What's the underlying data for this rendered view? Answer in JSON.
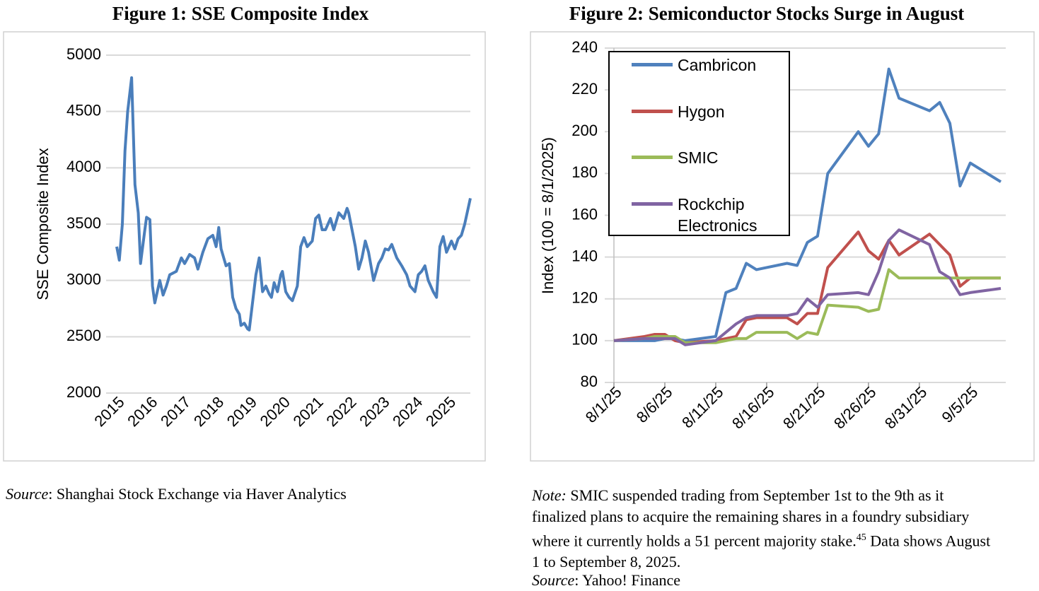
{
  "chart_data": [
    {
      "type": "line",
      "title": "Figure 1: SSE Composite Index",
      "y_label": "SSE Composite Index",
      "x": [
        2015.0,
        2015.08,
        2015.17,
        2015.25,
        2015.33,
        2015.45,
        2015.55,
        2015.65,
        2015.72,
        2015.85,
        2015.9,
        2016.0,
        2016.08,
        2016.15,
        2016.3,
        2016.4,
        2016.5,
        2016.6,
        2016.8,
        2016.95,
        2017.05,
        2017.2,
        2017.35,
        2017.45,
        2017.6,
        2017.75,
        2017.9,
        2018.0,
        2018.08,
        2018.15,
        2018.3,
        2018.4,
        2018.5,
        2018.6,
        2018.7,
        2018.75,
        2018.85,
        2018.95,
        2019.0,
        2019.2,
        2019.3,
        2019.4,
        2019.5,
        2019.6,
        2019.67,
        2019.75,
        2019.85,
        2019.95,
        2020.0,
        2020.1,
        2020.2,
        2020.3,
        2020.45,
        2020.55,
        2020.65,
        2020.75,
        2020.9,
        2021.0,
        2021.1,
        2021.2,
        2021.3,
        2021.45,
        2021.55,
        2021.7,
        2021.85,
        2021.95,
        2022.0,
        2022.1,
        2022.2,
        2022.3,
        2022.4,
        2022.5,
        2022.6,
        2022.75,
        2022.9,
        2023.0,
        2023.1,
        2023.2,
        2023.3,
        2023.45,
        2023.6,
        2023.75,
        2023.85,
        2024.0,
        2024.1,
        2024.2,
        2024.3,
        2024.4,
        2024.55,
        2024.65,
        2024.75,
        2024.85,
        2024.95,
        2025.1,
        2025.2,
        2025.3,
        2025.4,
        2025.5,
        2025.67
      ],
      "values": [
        3300,
        3180,
        3500,
        4150,
        4500,
        4800,
        3850,
        3600,
        3150,
        3450,
        3560,
        3540,
        2950,
        2800,
        3000,
        2870,
        2950,
        3050,
        3080,
        3200,
        3150,
        3230,
        3200,
        3100,
        3250,
        3370,
        3400,
        3300,
        3470,
        3280,
        3130,
        3150,
        2850,
        2750,
        2700,
        2600,
        2620,
        2570,
        2560,
        3050,
        3200,
        2900,
        2950,
        2880,
        2850,
        2980,
        2900,
        3050,
        3080,
        2900,
        2850,
        2820,
        2950,
        3300,
        3380,
        3300,
        3350,
        3550,
        3580,
        3450,
        3450,
        3550,
        3450,
        3600,
        3550,
        3640,
        3600,
        3450,
        3300,
        3100,
        3200,
        3350,
        3250,
        3000,
        3150,
        3200,
        3280,
        3270,
        3320,
        3200,
        3130,
        3050,
        2950,
        2900,
        3050,
        3080,
        3130,
        3000,
        2900,
        2850,
        3300,
        3390,
        3250,
        3350,
        3280,
        3370,
        3400,
        3500,
        3730
      ],
      "color": "#4a7ebb",
      "xlim": [
        2015,
        2025.67
      ],
      "xticks": [
        2015,
        2016,
        2017,
        2018,
        2019,
        2020,
        2021,
        2022,
        2023,
        2024,
        2025
      ],
      "ylim": [
        2000,
        5000
      ],
      "yticks": [
        2000,
        2500,
        3000,
        3500,
        4000,
        4500,
        5000
      ],
      "grid": true,
      "source_label": "Source",
      "source_text": ": Shanghai Stock Exchange via Haver Analytics"
    },
    {
      "type": "line",
      "title": "Figure 2: Semiconductor Stocks Surge in August",
      "y_label": "Index (100 = 8/1/2025)",
      "x": [
        "8/1/25",
        "8/4/25",
        "8/5/25",
        "8/6/25",
        "8/7/25",
        "8/8/25",
        "8/11/25",
        "8/12/25",
        "8/13/25",
        "8/14/25",
        "8/15/25",
        "8/18/25",
        "8/19/25",
        "8/20/25",
        "8/21/25",
        "8/22/25",
        "8/25/25",
        "8/26/25",
        "8/27/25",
        "8/28/25",
        "8/29/25",
        "9/1/25",
        "9/2/25",
        "9/3/25",
        "9/4/25",
        "9/5/25",
        "9/8/25"
      ],
      "series": [
        {
          "name": "Cambricon",
          "color": "#4f81bd",
          "values": [
            100,
            100,
            100,
            101,
            101,
            100,
            102,
            123,
            125,
            137,
            134,
            137,
            136,
            147,
            150,
            180,
            200,
            193,
            199,
            230,
            216,
            210,
            214,
            204,
            174,
            185,
            176
          ]
        },
        {
          "name": "Hygon",
          "color": "#c0504d",
          "values": [
            100,
            102,
            103,
            103,
            100,
            99,
            100,
            101,
            102,
            110,
            111,
            111,
            108,
            113,
            113,
            135,
            152,
            143,
            139,
            148,
            141,
            151,
            146,
            141,
            126,
            130,
            130
          ]
        },
        {
          "name": "SMIC",
          "color": "#9bbb59",
          "values": [
            100,
            101,
            102,
            102,
            102,
            99,
            99,
            100,
            101,
            101,
            104,
            104,
            101,
            104,
            103,
            117,
            116,
            114,
            115,
            134,
            130,
            130,
            130,
            130,
            130,
            130,
            130
          ]
        },
        {
          "name": "Rockchip Electronics",
          "color": "#8064a2",
          "values": [
            100,
            101,
            101,
            101,
            101,
            98,
            100,
            104,
            108,
            111,
            112,
            112,
            113,
            120,
            116,
            122,
            123,
            122,
            133,
            148,
            153,
            146,
            133,
            130,
            122,
            123,
            125
          ]
        }
      ],
      "xlim": [
        "8/1/25",
        "9/8/25"
      ],
      "xticks": [
        "8/1/25",
        "8/6/25",
        "8/11/25",
        "8/16/25",
        "8/21/25",
        "8/26/25",
        "8/31/25",
        "9/5/25"
      ],
      "ylim": [
        80,
        240
      ],
      "yticks": [
        80,
        100,
        120,
        140,
        160,
        180,
        200,
        220,
        240
      ],
      "grid": true,
      "legend": "upper left",
      "note_label": "Note:",
      "note_text": " SMIC suspended trading from September 1st to the 9th as it finalized plans to acquire the remaining shares in a foundry subsidiary where it currently holds a 51 percent majority stake.",
      "note_ref": "45",
      "note_text2": " Data shows August 1 to September 8, 2025.",
      "source_label": "Source",
      "source_text": ": Yahoo! Finance"
    }
  ]
}
